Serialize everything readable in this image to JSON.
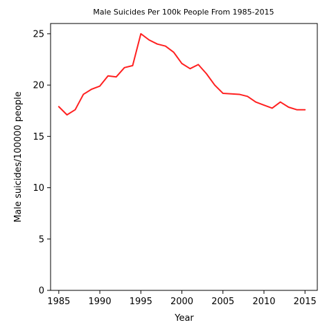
{
  "chart_data": {
    "type": "line",
    "title": "Male Suicides Per 100k People From 1985-2015",
    "xlabel": "Year",
    "ylabel": "Male suicides/100000 people",
    "xlim": [
      1984,
      2016.5
    ],
    "ylim": [
      0,
      26
    ],
    "xticks": [
      "1985",
      "1990",
      "1995",
      "2000",
      "2005",
      "2010",
      "2015"
    ],
    "yticks": [
      "0",
      "5",
      "10",
      "15",
      "20",
      "25"
    ],
    "grid": false,
    "series": [
      {
        "color": "#ff2020",
        "x": [
          1985,
          1986,
          1987,
          1988,
          1989,
          1990,
          1991,
          1992,
          1993,
          1994,
          1995,
          1996,
          1997,
          1998,
          1999,
          2000,
          2001,
          2002,
          2003,
          2004,
          2005,
          2006,
          2007,
          2008,
          2009,
          2010,
          2011,
          2012,
          2013,
          2014,
          2015
        ],
        "y": [
          17.9,
          17.1,
          17.6,
          19.1,
          19.6,
          19.9,
          20.9,
          20.8,
          21.7,
          21.9,
          25.0,
          24.4,
          24.0,
          23.8,
          23.2,
          22.1,
          21.6,
          22.0,
          21.1,
          20.0,
          19.2,
          19.15,
          19.1,
          18.9,
          18.35,
          18.05,
          17.75,
          18.35,
          17.85,
          17.6,
          17.6
        ]
      }
    ]
  }
}
